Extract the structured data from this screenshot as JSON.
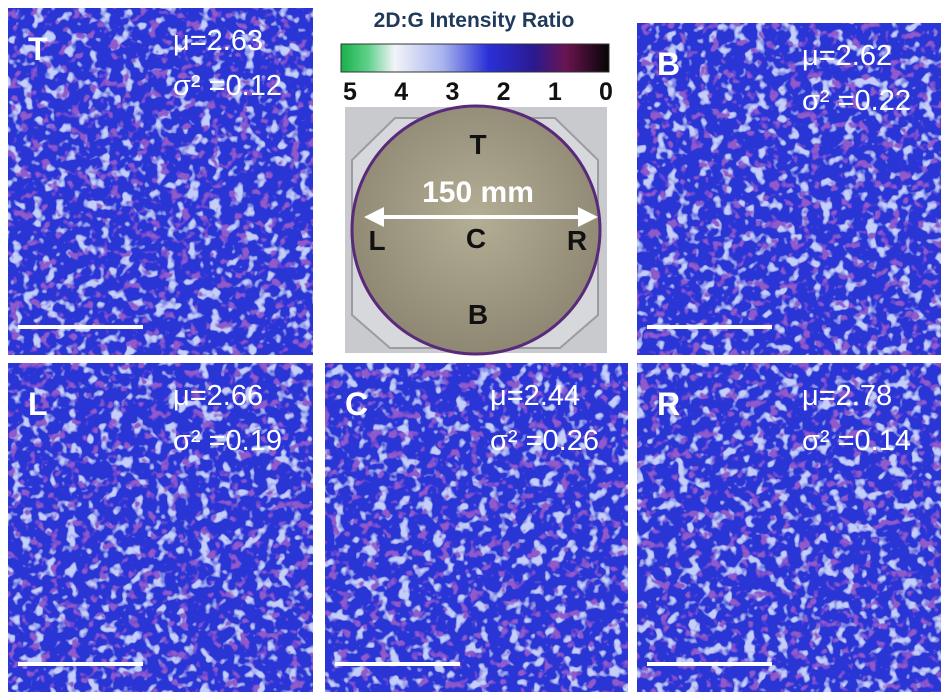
{
  "colorbar": {
    "title": "2D:G Intensity Ratio",
    "ticks": [
      5,
      4,
      3,
      2,
      1,
      0
    ]
  },
  "wafer": {
    "top": "T",
    "center": "C",
    "left": "L",
    "right": "R",
    "bottom": "B",
    "diameter": "150 mm"
  },
  "panels": [
    {
      "label": "T",
      "mean": "μ=2.63",
      "variance": "σ² =0.12"
    },
    {
      "label": "B",
      "mean": "μ=2.62",
      "variance": "σ² =0.22"
    },
    {
      "label": "L",
      "mean": "μ=2.66",
      "variance": "σ² =0.19"
    },
    {
      "label": "C",
      "mean": "μ=2.44",
      "variance": "σ² =0.26"
    },
    {
      "label": "R",
      "mean": "μ=2.78",
      "variance": "σ² =0.14"
    }
  ]
}
